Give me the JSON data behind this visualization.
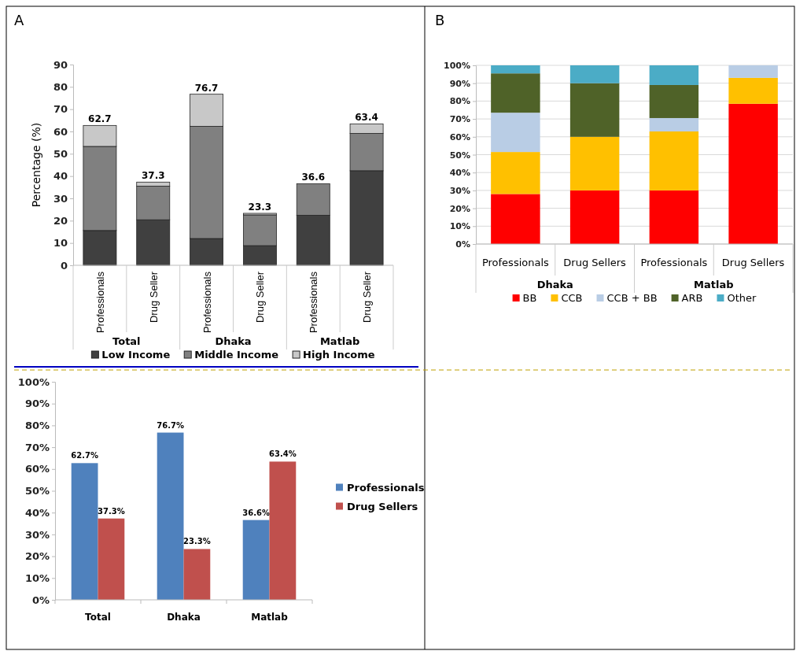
{
  "chart_data": [
    {
      "type": "bar",
      "title": "A",
      "ylabel": "Percentage (%)",
      "stacked": true,
      "categories": [
        "Professionals",
        "Drug Seller",
        "Professionals",
        "Drug Seller",
        "Professionals",
        "Drug Seller"
      ],
      "annotations": [
        "Total",
        "Dhaka",
        "Matlab"
      ],
      "series": [
        {
          "name": "Low Income",
          "color": "#404040",
          "values": [
            15.6,
            20.4,
            12,
            8.8,
            22.4,
            42.4
          ]
        },
        {
          "name": "Middle Income",
          "color": "#808080",
          "values": [
            37.7,
            15.1,
            50.3,
            13.8,
            14.2,
            16.7
          ]
        },
        {
          "name": "High Income",
          "color": "#c8c8c8",
          "values": [
            9.4,
            1.8,
            14.4,
            0.7,
            0,
            4.3
          ]
        }
      ],
      "totals": [
        "62.7",
        "37.3",
        "76.7",
        "23.3",
        "36.6",
        "63.4"
      ],
      "ylim": [
        0,
        90
      ],
      "yticks": [
        0,
        10,
        20,
        30,
        40,
        50,
        60,
        70,
        80,
        90
      ],
      "grid": false,
      "legend": "bottom"
    },
    {
      "type": "bar",
      "title": "B",
      "stacked": true,
      "categories": [
        "Professionals",
        "Drug Sellers",
        "Professionals",
        "Drug Sellers"
      ],
      "annotations": [
        "Dhaka",
        "Matlab"
      ],
      "series": [
        {
          "name": "BB",
          "color": "#ff0000",
          "values": [
            28,
            30,
            30,
            78.5
          ]
        },
        {
          "name": "CCB",
          "color": "#ffc000",
          "values": [
            23.5,
            30,
            33,
            14.5
          ]
        },
        {
          "name": "CCB + BB",
          "color": "#b9cde5",
          "values": [
            22,
            0,
            7.5,
            7
          ]
        },
        {
          "name": "ARB",
          "color": "#4f6228",
          "values": [
            22,
            30,
            18.5,
            0
          ]
        },
        {
          "name": "Other",
          "color": "#4bacc6",
          "values": [
            4.5,
            10,
            11,
            0
          ]
        }
      ],
      "ylim": [
        0,
        100
      ],
      "yticks": [
        {
          "value": 0,
          "label": "0%"
        },
        {
          "value": 10,
          "label": "10%"
        },
        {
          "value": 20,
          "label": "20%"
        },
        {
          "value": 30,
          "label": "30%"
        },
        {
          "value": 40,
          "label": "40%"
        },
        {
          "value": 50,
          "label": "50%"
        },
        {
          "value": 60,
          "label": "60%"
        },
        {
          "value": 70,
          "label": "70%"
        },
        {
          "value": 80,
          "label": "80%"
        },
        {
          "value": 90,
          "label": "90%"
        },
        {
          "value": 100,
          "label": "100%"
        }
      ],
      "grid": "y",
      "legend": "bottom"
    },
    {
      "type": "bar",
      "categories": [
        "Total",
        "Dhaka",
        "Matlab"
      ],
      "series": [
        {
          "name": "Professionals",
          "color": "#4f81bd",
          "values": [
            62.7,
            76.7,
            36.6
          ],
          "value_labels": [
            "62.7%",
            "76.7%",
            "36.6%"
          ]
        },
        {
          "name": "Drug Sellers",
          "color": "#c0504d",
          "values": [
            37.3,
            23.3,
            63.4
          ],
          "value_labels": [
            "37.3%",
            "23.3%",
            "63.4%"
          ]
        }
      ],
      "ylim": [
        0,
        100
      ],
      "yticks": [
        {
          "value": 0,
          "label": "0%"
        },
        {
          "value": 10,
          "label": "10%"
        },
        {
          "value": 20,
          "label": "20%"
        },
        {
          "value": 30,
          "label": "30%"
        },
        {
          "value": 40,
          "label": "40%"
        },
        {
          "value": 50,
          "label": "50%"
        },
        {
          "value": 60,
          "label": "60%"
        },
        {
          "value": 70,
          "label": "70%"
        },
        {
          "value": 80,
          "label": "80%"
        },
        {
          "value": 90,
          "label": "90%"
        },
        {
          "value": 100,
          "label": "100%"
        }
      ],
      "grid": false,
      "legend": "right"
    }
  ]
}
